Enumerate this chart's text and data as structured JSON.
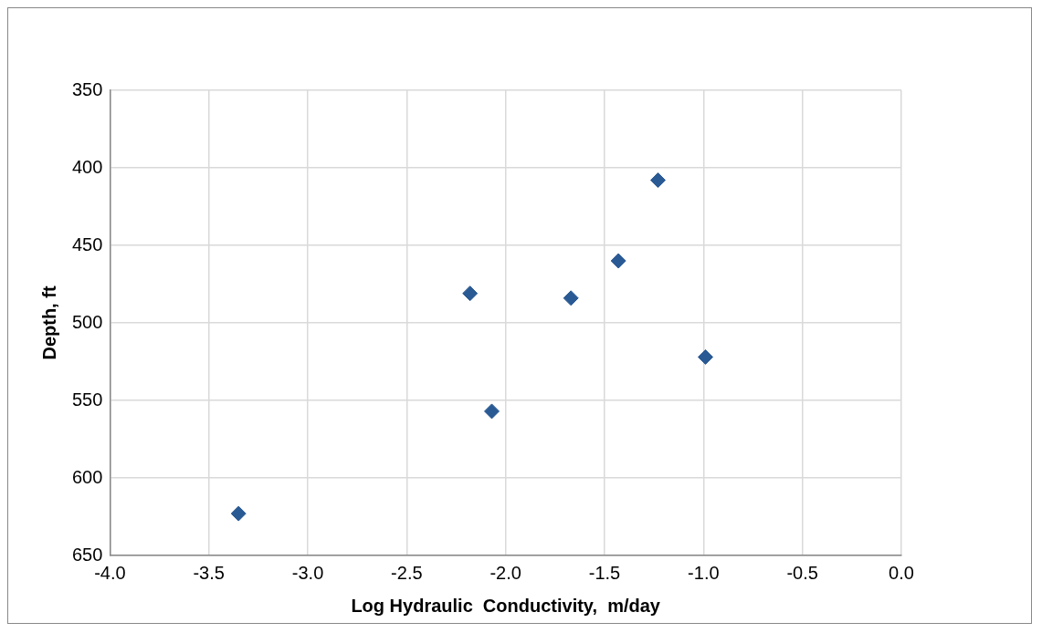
{
  "chart_data": {
    "type": "scatter",
    "xlabel": "Log Hydraulic  Conductivity,  m/day",
    "ylabel": "Depth, ft",
    "x": [
      -3.35,
      -2.18,
      -2.07,
      -1.67,
      -1.43,
      -1.23,
      -0.99
    ],
    "series": [
      {
        "color": "#2a5a94",
        "values": [
          623,
          481,
          557,
          484,
          460,
          408,
          522
        ]
      }
    ],
    "xlim": [
      -4,
      0
    ],
    "xticks": [
      {
        "value": -4,
        "label": "-4.0"
      },
      {
        "value": -3.5,
        "label": "-3.5"
      },
      {
        "value": -3,
        "label": "-3.0"
      },
      {
        "value": -2.5,
        "label": "-2.5"
      },
      {
        "value": -2,
        "label": "-2.0"
      },
      {
        "value": -1.5,
        "label": "-1.5"
      },
      {
        "value": -1,
        "label": "-1.0"
      },
      {
        "value": -0.5,
        "label": "-0.5"
      },
      {
        "value": 0,
        "label": "0.0"
      }
    ],
    "ylim": [
      650,
      350
    ],
    "yticks": [
      350,
      400,
      450,
      500,
      550,
      600,
      650
    ],
    "grid": true,
    "marker": "diamond",
    "legend": false
  }
}
